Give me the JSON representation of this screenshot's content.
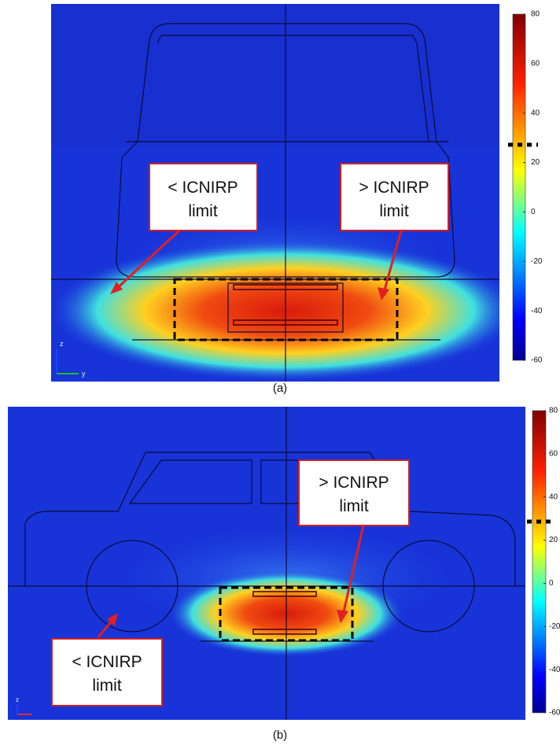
{
  "panels": [
    {
      "label": "(a)",
      "axis_labels": [
        "z",
        "y"
      ],
      "annotations": [
        {
          "lines": [
            "< ICNIRP",
            "limit"
          ]
        },
        {
          "lines": [
            "> ICNIRP",
            "limit"
          ]
        }
      ],
      "colorbar_ticks": [
        80,
        60,
        40,
        20,
        0,
        -20,
        -40,
        -60
      ]
    },
    {
      "label": "(b)",
      "axis_labels": [
        "z"
      ],
      "annotations": [
        {
          "lines": [
            "> ICNIRP",
            "limit"
          ]
        },
        {
          "lines": [
            "< ICNIRP",
            "limit"
          ]
        }
      ],
      "colorbar_ticks": [
        80,
        60,
        40,
        20,
        0,
        -20,
        -40,
        -60
      ]
    }
  ]
}
